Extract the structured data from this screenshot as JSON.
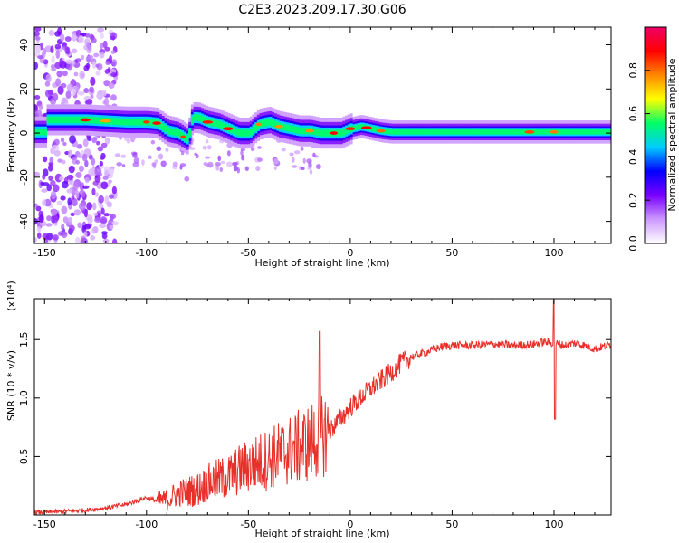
{
  "page_title": "C2E3.2023.209.17.30.G06",
  "chart_data": [
    {
      "type": "heatmap",
      "xlabel": "Height of straight line (km)",
      "ylabel": "Frequency (Hz)",
      "xlim": [
        -155,
        128
      ],
      "ylim": [
        -50,
        48
      ],
      "xticks": [
        -150,
        -100,
        -50,
        0,
        50,
        100
      ],
      "yticks": [
        -40,
        -20,
        0,
        20,
        40
      ],
      "colorbar": {
        "label": "Normalized spectral amplitude",
        "range": [
          0,
          1
        ],
        "ticks": [
          "0.0",
          "0.2",
          "0.4",
          "0.6",
          "0.8"
        ],
        "colors": [
          "#ffffff",
          "#cc99ff",
          "#7a00ff",
          "#0000ff",
          "#00ccff",
          "#00ff66",
          "#ffff00",
          "#ff8800",
          "#ff0000",
          "#ee0066"
        ]
      },
      "ridge": {
        "x": [
          -150,
          -140,
          -130,
          -120,
          -110,
          -100,
          -95,
          -90,
          -85,
          -80,
          -78,
          -75,
          -70,
          -65,
          -60,
          -55,
          -50,
          -45,
          -40,
          -35,
          -30,
          -25,
          -20,
          -15,
          -10,
          -5,
          0,
          5,
          10,
          15,
          20,
          30,
          40,
          50,
          60,
          70,
          80,
          90,
          100,
          110,
          120,
          128
        ],
        "y": [
          6,
          6,
          6,
          5.5,
          5,
          5,
          4.5,
          1,
          0,
          -3,
          7,
          7,
          5,
          4,
          2,
          0,
          0,
          4,
          5,
          3,
          2,
          1,
          1,
          0,
          0,
          0,
          2,
          3,
          2,
          1,
          0.5,
          0.5,
          0.5,
          0.5,
          0.5,
          0.5,
          0.5,
          0.5,
          0.5,
          0.5,
          0.5,
          0.5
        ]
      }
    },
    {
      "type": "line",
      "xlabel": "Height of straight line (km)",
      "ylabel": "SNR (10 * v/v)",
      "yunit": "(x10⁴)",
      "xlim": [
        -155,
        128
      ],
      "ylim": [
        0,
        1.85
      ],
      "xticks": [
        -150,
        -100,
        -50,
        0,
        50,
        100
      ],
      "yticks": [
        0.5,
        1.0,
        1.5
      ],
      "ytick_labels": [
        "0.5",
        "1.0",
        "1.5"
      ],
      "series": [
        {
          "color": "#e8302a",
          "x": [
            -155,
            -140,
            -130,
            -120,
            -110,
            -105,
            -100,
            -95,
            -90,
            -85,
            -80,
            -75,
            -70,
            -65,
            -60,
            -55,
            -50,
            -45,
            -40,
            -35,
            -30,
            -25,
            -20,
            -15,
            -10,
            -5,
            0,
            5,
            10,
            15,
            20,
            25,
            30,
            35,
            40,
            45,
            50,
            60,
            70,
            80,
            90,
            95,
            100,
            105,
            110,
            115,
            120,
            128
          ],
          "values": [
            0.02,
            0.03,
            0.04,
            0.06,
            0.09,
            0.12,
            0.15,
            0.12,
            0.13,
            0.18,
            0.2,
            0.22,
            0.27,
            0.3,
            0.32,
            0.38,
            0.42,
            0.45,
            0.48,
            0.52,
            0.55,
            0.58,
            0.62,
            0.67,
            0.72,
            0.82,
            0.92,
            1.0,
            1.08,
            1.15,
            1.22,
            1.3,
            1.35,
            1.38,
            1.41,
            1.44,
            1.45,
            1.45,
            1.46,
            1.45,
            1.46,
            1.48,
            1.47,
            1.45,
            1.47,
            1.45,
            1.42,
            1.46
          ]
        }
      ]
    }
  ]
}
